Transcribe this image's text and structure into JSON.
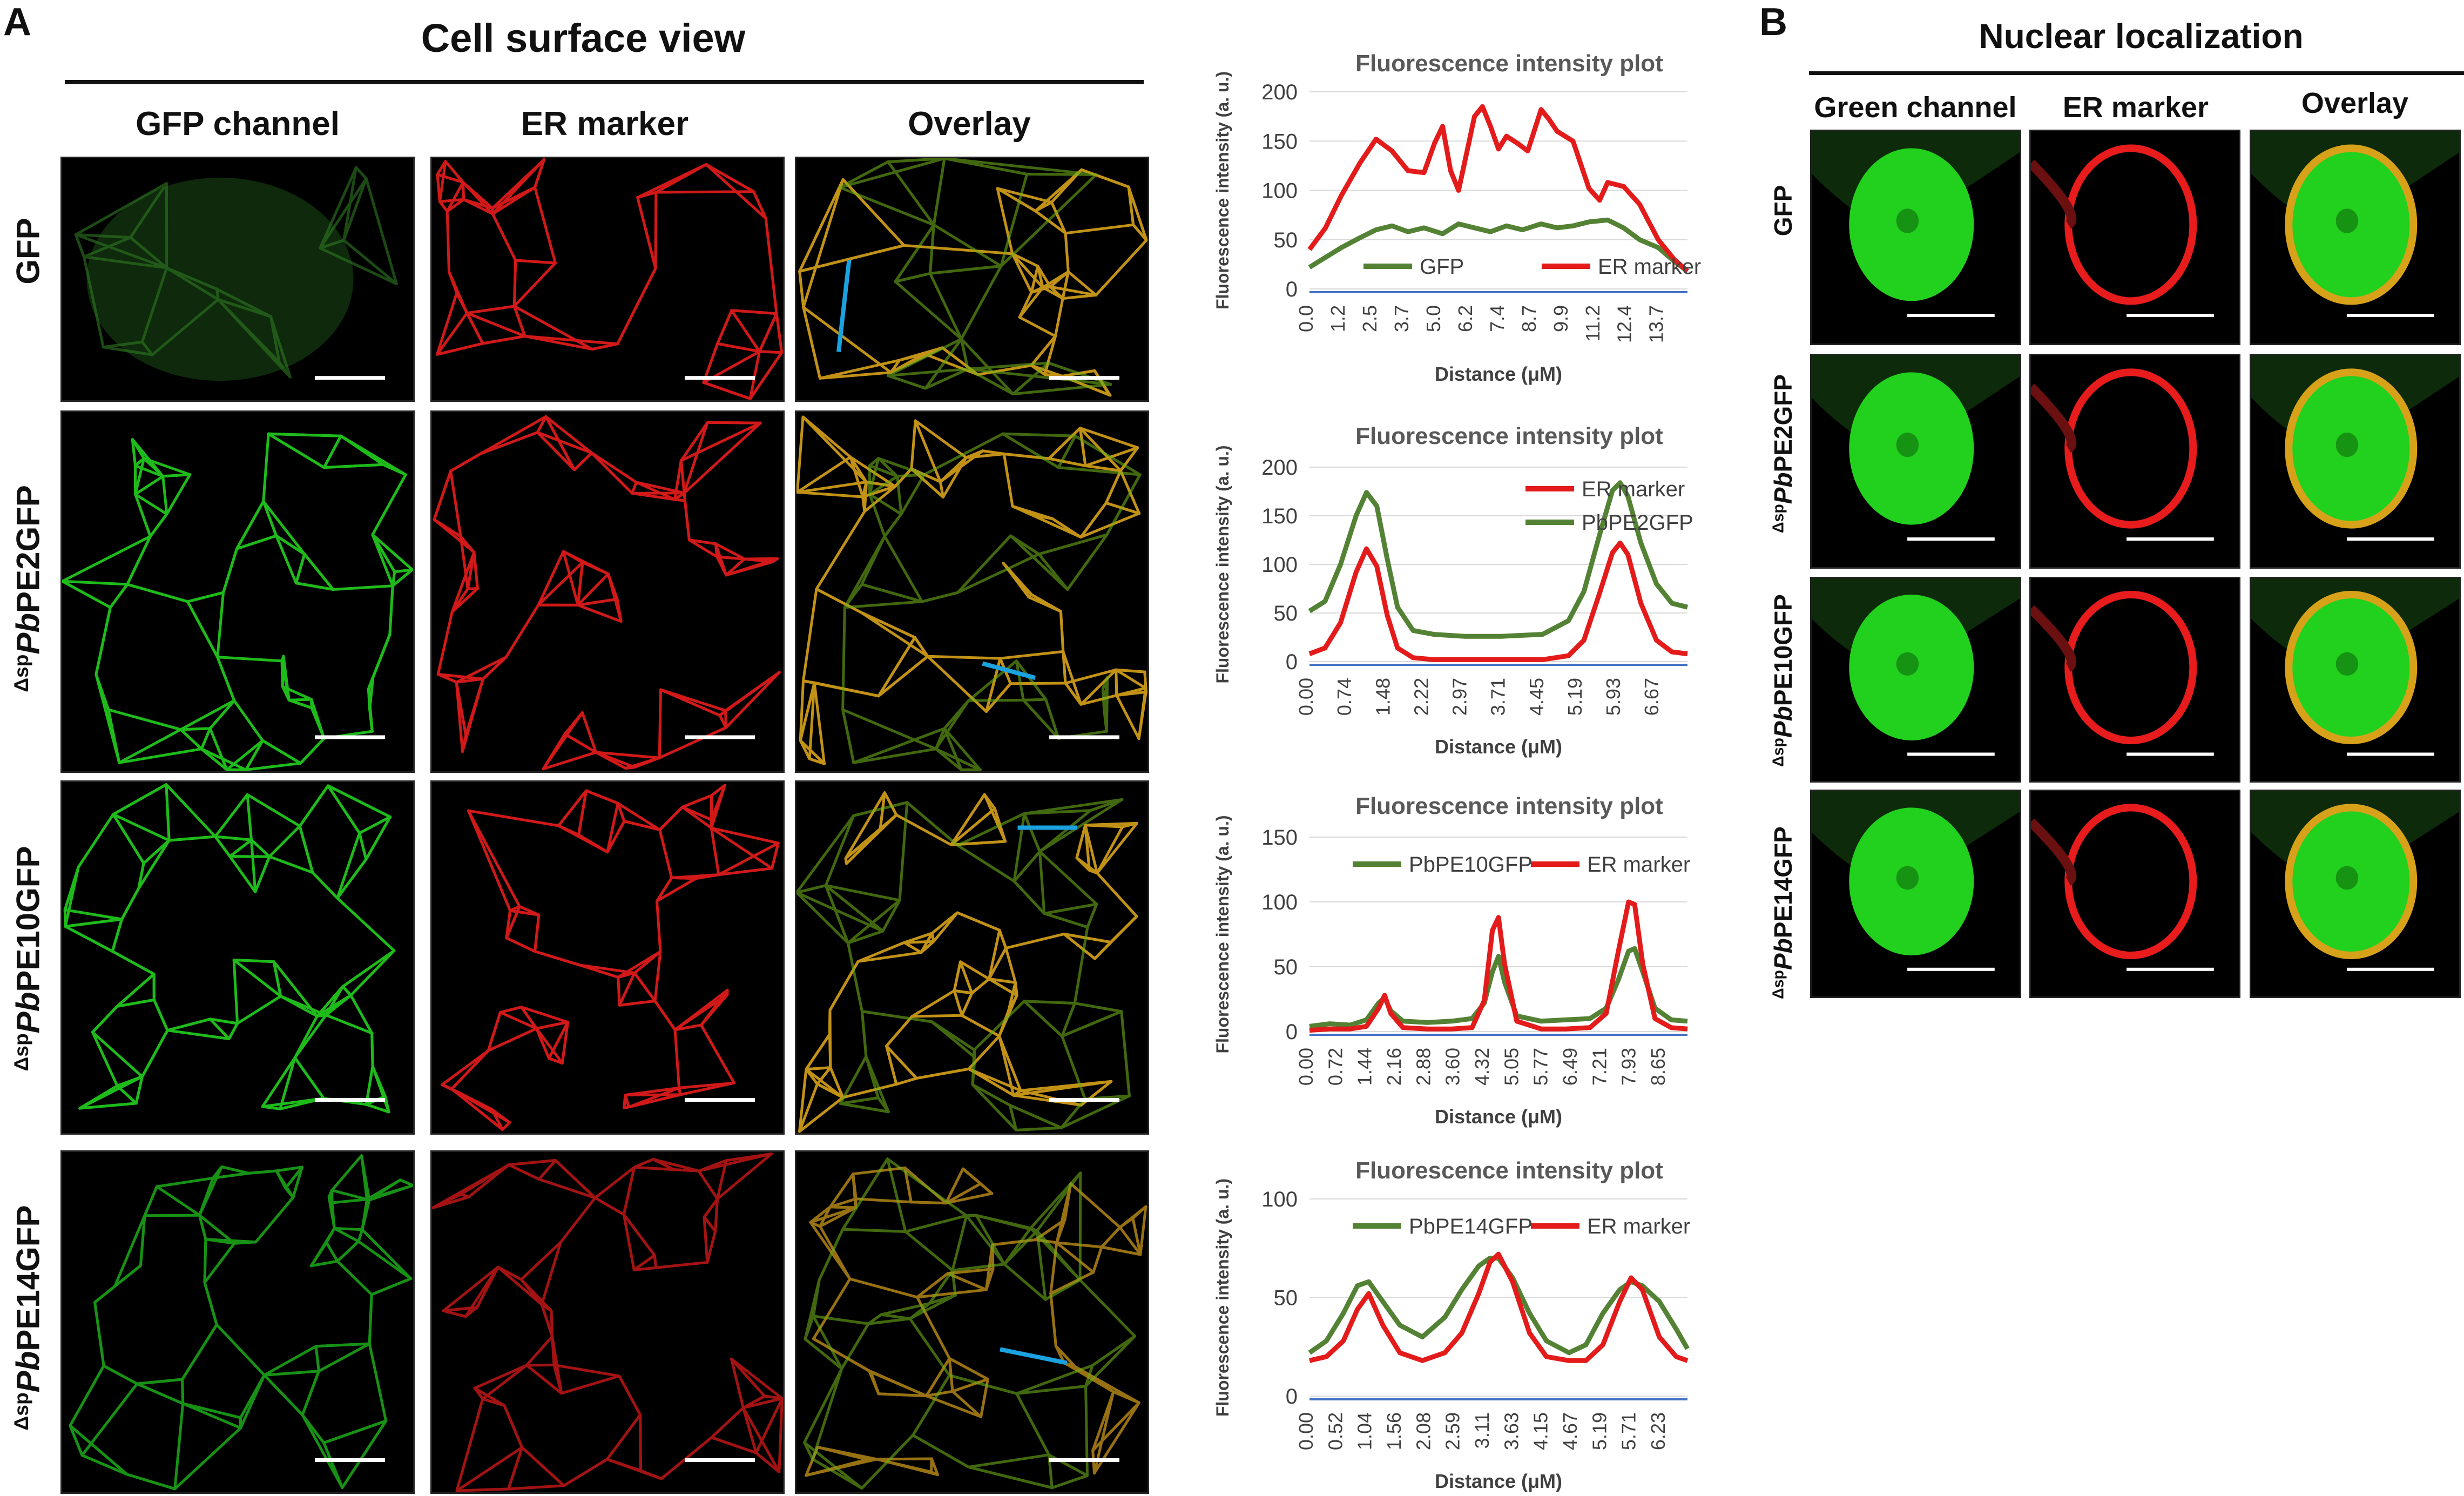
{
  "panel_a": {
    "letter": "A",
    "title": "Cell surface view",
    "columns": [
      "GFP channel",
      "ER marker",
      "Overlay"
    ],
    "rows": [
      {
        "prefix": "",
        "italic": "",
        "suffix": "GFP"
      },
      {
        "prefix": "Δsp",
        "italic": "Pb",
        "suffix": "PE2GFP"
      },
      {
        "prefix": "Δsp",
        "italic": "Pb",
        "suffix": "PE10GFP"
      },
      {
        "prefix": "Δsp",
        "italic": "Pb",
        "suffix": "PE14GFP"
      }
    ]
  },
  "panel_b": {
    "letter": "B",
    "title": "Nuclear localization",
    "columns": [
      "Green channel",
      "ER marker",
      "Overlay"
    ],
    "rows": [
      {
        "prefix": "",
        "italic": "",
        "suffix": "GFP"
      },
      {
        "prefix": "Δsp",
        "italic": "Pb",
        "suffix": "PE2GFP"
      },
      {
        "prefix": "Δsp",
        "italic": "Pb",
        "suffix": "PE10GFP"
      },
      {
        "prefix": "Δsp",
        "italic": "Pb",
        "suffix": "PE14GFP"
      }
    ]
  },
  "colors": {
    "green_series": "#548235",
    "red_series": "#e31b1b",
    "axis_line": "#4472c4",
    "grid": "#d9d9d9",
    "profile_line": "#1aa3e0",
    "gfp_signal": "#22d01e",
    "er_signal": "#e81c1c",
    "overlay_signal": "#d7a21a"
  },
  "chart_data": [
    {
      "type": "line",
      "title": "Fluorescence intensity plot",
      "xlabel": "Distance (μM)",
      "ylabel": "Fluorescence intensity (a. u.)",
      "ylim": [
        0,
        200
      ],
      "yticks": [
        0,
        50,
        100,
        150,
        200
      ],
      "xtick_labels": [
        "0.0",
        "1.2",
        "2.5",
        "3.7",
        "5.0",
        "6.2",
        "7.4",
        "8.7",
        "9.9",
        "11.2",
        "12.4",
        "13.7"
      ],
      "xlim": [
        0,
        14.2
      ],
      "legend_position": "inside-bottom",
      "series": [
        {
          "name": "GFP",
          "color": "#548235",
          "x": [
            0,
            0.6,
            1.2,
            1.9,
            2.5,
            3.1,
            3.7,
            4.3,
            5.0,
            5.6,
            6.2,
            6.8,
            7.4,
            8.0,
            8.7,
            9.3,
            9.9,
            10.5,
            11.2,
            11.8,
            12.4,
            13.1,
            13.7,
            14.2
          ],
          "y": [
            22,
            32,
            42,
            52,
            60,
            64,
            58,
            62,
            56,
            66,
            62,
            58,
            64,
            60,
            66,
            62,
            64,
            68,
            70,
            62,
            50,
            42,
            28,
            18
          ]
        },
        {
          "name": "ER marker",
          "color": "#e31b1b",
          "x": [
            0,
            0.6,
            1.2,
            1.9,
            2.5,
            3.1,
            3.7,
            4.3,
            4.7,
            5.0,
            5.3,
            5.6,
            6.0,
            6.2,
            6.5,
            6.8,
            7.1,
            7.4,
            7.8,
            8.2,
            8.7,
            9.0,
            9.3,
            9.9,
            10.5,
            10.9,
            11.2,
            11.8,
            12.4,
            13.1,
            13.7,
            14.2
          ],
          "y": [
            40,
            62,
            95,
            128,
            152,
            140,
            120,
            118,
            148,
            165,
            120,
            100,
            150,
            175,
            185,
            165,
            142,
            155,
            148,
            140,
            182,
            172,
            160,
            150,
            102,
            90,
            108,
            104,
            86,
            50,
            30,
            18
          ]
        }
      ]
    },
    {
      "type": "line",
      "title": "Fluorescence intensity plot",
      "xlabel": "Distance (μM)",
      "ylabel": "Fluorescence intensity (a. u.)",
      "ylim": [
        0,
        200
      ],
      "yticks": [
        0,
        50,
        100,
        150,
        200
      ],
      "xtick_labels": [
        "0.00",
        "0.74",
        "1.48",
        "2.22",
        "2.97",
        "3.71",
        "4.45",
        "5.19",
        "5.93",
        "6.67"
      ],
      "xlim": [
        0,
        7.3
      ],
      "legend_position": "top-right",
      "series": [
        {
          "name": "ER marker",
          "color": "#e31b1b",
          "x": [
            0,
            0.3,
            0.6,
            0.9,
            1.1,
            1.3,
            1.5,
            1.7,
            2.0,
            2.4,
            3.0,
            3.7,
            4.5,
            5.0,
            5.3,
            5.6,
            5.85,
            6.0,
            6.15,
            6.4,
            6.7,
            7.0,
            7.3
          ],
          "y": [
            8,
            14,
            40,
            92,
            116,
            98,
            48,
            14,
            4,
            2,
            2,
            2,
            2,
            6,
            22,
            70,
            112,
            122,
            110,
            60,
            22,
            10,
            8
          ]
        },
        {
          "name": "PbPE2GFP",
          "color": "#548235",
          "x": [
            0,
            0.3,
            0.6,
            0.9,
            1.1,
            1.3,
            1.5,
            1.7,
            2.0,
            2.4,
            3.0,
            3.7,
            4.5,
            5.0,
            5.3,
            5.6,
            5.85,
            6.0,
            6.15,
            6.4,
            6.7,
            7.0,
            7.3
          ],
          "y": [
            52,
            62,
            100,
            150,
            174,
            160,
            106,
            56,
            32,
            28,
            26,
            26,
            28,
            42,
            72,
            130,
            176,
            184,
            170,
            122,
            80,
            60,
            56
          ]
        }
      ]
    },
    {
      "type": "line",
      "title": "Fluorescence intensity plot",
      "xlabel": "Distance (μM)",
      "ylabel": "Fluorescence intensity (a. u.)",
      "ylim": [
        0,
        150
      ],
      "yticks": [
        0,
        50,
        100,
        150
      ],
      "xtick_labels": [
        "0.00",
        "0.72",
        "1.44",
        "2.16",
        "2.88",
        "3.60",
        "4.32",
        "5.05",
        "5.77",
        "6.49",
        "7.21",
        "7.93",
        "8.65"
      ],
      "xlim": [
        0,
        9.3
      ],
      "legend_position": "top",
      "series": [
        {
          "name": "PbPE10GFP",
          "color": "#548235",
          "x": [
            0,
            0.5,
            1.0,
            1.4,
            1.7,
            1.85,
            2.0,
            2.3,
            2.9,
            3.5,
            4.0,
            4.3,
            4.5,
            4.65,
            4.8,
            5.1,
            5.7,
            6.3,
            6.9,
            7.3,
            7.6,
            7.85,
            8.0,
            8.2,
            8.5,
            8.9,
            9.3
          ],
          "y": [
            4,
            6,
            5,
            9,
            22,
            26,
            16,
            8,
            7,
            8,
            10,
            22,
            46,
            58,
            38,
            12,
            8,
            9,
            10,
            18,
            40,
            62,
            64,
            46,
            18,
            9,
            8
          ]
        },
        {
          "name": "ER marker",
          "color": "#e31b1b",
          "x": [
            0,
            0.5,
            1.0,
            1.4,
            1.7,
            1.85,
            2.0,
            2.3,
            2.9,
            3.5,
            4.0,
            4.3,
            4.5,
            4.65,
            4.8,
            5.1,
            5.7,
            6.3,
            6.9,
            7.3,
            7.6,
            7.85,
            8.0,
            8.2,
            8.5,
            8.9,
            9.3
          ],
          "y": [
            1,
            2,
            2,
            4,
            18,
            28,
            14,
            3,
            2,
            2,
            3,
            24,
            78,
            88,
            52,
            8,
            2,
            2,
            3,
            14,
            62,
            100,
            98,
            52,
            10,
            3,
            2
          ]
        }
      ]
    },
    {
      "type": "line",
      "title": "Fluorescence intensity plot",
      "xlabel": "Distance (μM)",
      "ylabel": "Fluorescence intensity (a. u.)",
      "ylim": [
        0,
        100
      ],
      "yticks": [
        0,
        50,
        100
      ],
      "xtick_labels": [
        "0.00",
        "0.52",
        "1.04",
        "1.56",
        "2.08",
        "2.59",
        "3.11",
        "3.63",
        "4.15",
        "4.67",
        "5.19",
        "5.71",
        "6.23"
      ],
      "xlim": [
        0,
        6.7
      ],
      "legend_position": "top",
      "series": [
        {
          "name": "PbPE14GFP",
          "color": "#548235",
          "x": [
            0,
            0.3,
            0.6,
            0.85,
            1.05,
            1.3,
            1.6,
            2.0,
            2.4,
            2.7,
            3.0,
            3.2,
            3.35,
            3.6,
            3.9,
            4.2,
            4.6,
            4.9,
            5.2,
            5.5,
            5.7,
            5.9,
            6.2,
            6.5,
            6.7
          ],
          "y": [
            22,
            28,
            42,
            56,
            58,
            48,
            36,
            30,
            40,
            54,
            66,
            70,
            70,
            60,
            42,
            28,
            22,
            26,
            42,
            54,
            58,
            56,
            48,
            34,
            24
          ]
        },
        {
          "name": "ER marker",
          "color": "#e31b1b",
          "x": [
            0,
            0.3,
            0.6,
            0.85,
            1.05,
            1.3,
            1.6,
            2.0,
            2.4,
            2.7,
            3.0,
            3.2,
            3.35,
            3.6,
            3.9,
            4.2,
            4.6,
            4.9,
            5.2,
            5.5,
            5.7,
            5.9,
            6.2,
            6.5,
            6.7
          ],
          "y": [
            18,
            20,
            28,
            44,
            52,
            36,
            22,
            18,
            22,
            32,
            52,
            68,
            72,
            58,
            32,
            20,
            18,
            18,
            26,
            48,
            60,
            54,
            30,
            20,
            18
          ]
        }
      ]
    }
  ]
}
